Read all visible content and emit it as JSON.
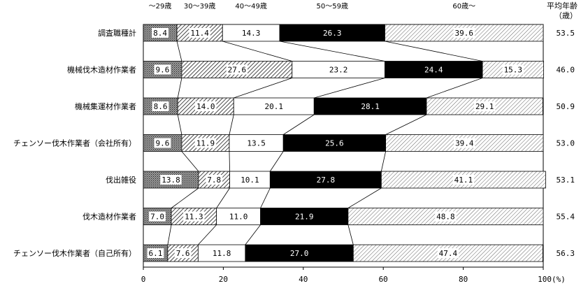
{
  "chart_data": {
    "type": "bar",
    "orientation": "horizontal",
    "stacked": "percent",
    "categories": [
      "調査職種計",
      "機械伐木造材作業者",
      "機械集運材作業者",
      "チェンソー伐木作業者（会社所有）",
      "伐出雑役",
      "伐木造材作業者",
      "チェンソー伐木作業者（自己所有）"
    ],
    "series": [
      {
        "name": "～29歳",
        "values": [
          8.4,
          9.6,
          8.6,
          9.6,
          13.8,
          7.0,
          6.1
        ],
        "label_text": [
          "8.4",
          "9.6",
          "8.6",
          "9.6",
          "13.8",
          "7.0",
          "6.1"
        ]
      },
      {
        "name": "30～39歳",
        "values": [
          11.4,
          27.6,
          14.0,
          11.9,
          7.8,
          11.3,
          7.6
        ],
        "label_text": [
          "11.4",
          "27.6",
          "14.0",
          "11.9",
          "7.8",
          "11.3",
          "7.6"
        ]
      },
      {
        "name": "40～49歳",
        "values": [
          14.3,
          23.2,
          20.1,
          13.5,
          10.1,
          11.0,
          11.8
        ],
        "label_text": [
          "14.3",
          "23.2",
          "20.1",
          "13.5",
          "10.1",
          "11.0",
          "11.8"
        ]
      },
      {
        "name": "50～59歳",
        "values": [
          26.3,
          24.4,
          28.1,
          25.6,
          27.8,
          21.9,
          27.0
        ],
        "label_text": [
          "26.3",
          "24.4",
          "28.1",
          "25.6",
          "27.8",
          "21.9",
          "27.0"
        ]
      },
      {
        "name": "60歳～",
        "values": [
          39.6,
          15.3,
          29.1,
          39.4,
          41.1,
          48.8,
          47.4
        ],
        "label_text": [
          "39.6",
          "15.3",
          "29.1",
          "39.4",
          "41.1",
          "48.8",
          "47.4"
        ]
      }
    ],
    "average_age": {
      "header": [
        "平均年齢",
        "（歳）"
      ],
      "values": [
        "53.5",
        "46.0",
        "50.9",
        "53.0",
        "53.1",
        "55.4",
        "56.3"
      ]
    },
    "xlim": [
      0,
      100
    ],
    "x_ticks": [
      "0",
      "20",
      "40",
      "60",
      "80",
      "100(%)"
    ],
    "grid": false,
    "legend": "top (age group headers above columns)",
    "series_styles": [
      {
        "fill": "dots-dark"
      },
      {
        "fill": "diagonal-hatch"
      },
      {
        "fill": "#ffffff"
      },
      {
        "fill": "#000000"
      },
      {
        "fill": "diagonal-hatch-light"
      }
    ]
  }
}
